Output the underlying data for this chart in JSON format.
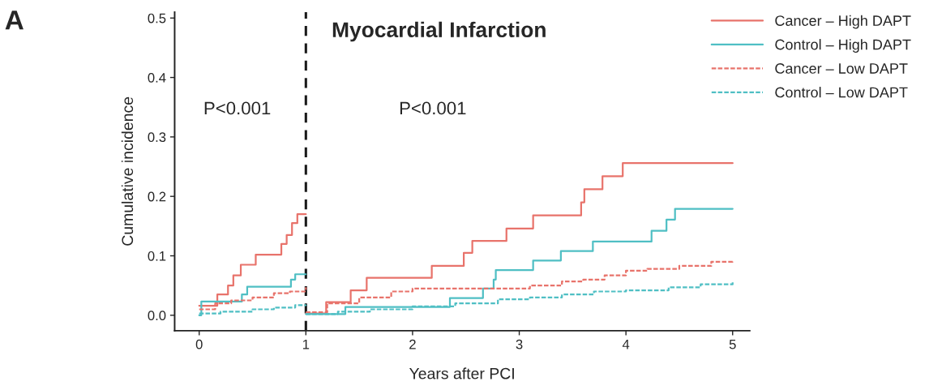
{
  "chart_data": {
    "type": "step",
    "title": "Myocardial Infarction",
    "xlabel": "Years after PCI",
    "ylabel": "Cumulative incidence",
    "annotations": [
      "A",
      "P<0.001",
      "P<0.001"
    ],
    "xlim": [
      -0.23,
      5.16
    ],
    "ylim": [
      -0.026,
      0.51
    ],
    "xticks": [
      0,
      1,
      2,
      3,
      4,
      5
    ],
    "yticks": [
      {
        "value": 0,
        "label": "0.0"
      },
      0.1,
      0.2,
      0.3,
      0.4,
      0.5
    ],
    "grid": false,
    "legend": "top right",
    "ref_lines": [
      {
        "axis": "x",
        "value": 1,
        "color": "#1a1a1a",
        "line_style": "dashed"
      }
    ],
    "series": [
      {
        "color": "#e8736b",
        "line_style": "solid",
        "x": [
          0,
          0.17,
          0.27,
          0.32,
          0.39,
          0.53,
          0.77,
          0.82,
          0.87,
          0.92,
          0.97,
          1
        ],
        "values": [
          0.016,
          0.035,
          0.05,
          0.067,
          0.085,
          0.102,
          0.12,
          0.135,
          0.155,
          0.17,
          0.17,
          0.17
        ]
      },
      {
        "name": "Cancer – High DAPT",
        "color": "#e8736b",
        "line_style": "solid",
        "x": [
          1,
          1.19,
          1.42,
          1.57,
          2.18,
          2.48,
          2.56,
          2.88,
          3.13,
          3.58,
          3.61,
          3.78,
          3.97,
          5
        ],
        "values": [
          0.003,
          0.022,
          0.042,
          0.063,
          0.083,
          0.105,
          0.125,
          0.146,
          0.168,
          0.19,
          0.212,
          0.234,
          0.256,
          0.256
        ]
      },
      {
        "color": "#4fbfc4",
        "line_style": "solid",
        "x": [
          0,
          0.02,
          0.4,
          0.45,
          0.86,
          0.9,
          1
        ],
        "values": [
          0.0,
          0.023,
          0.035,
          0.048,
          0.06,
          0.069,
          0.069
        ]
      },
      {
        "name": "Control – High DAPT",
        "color": "#4fbfc4",
        "line_style": "solid",
        "x": [
          1,
          1.37,
          2.35,
          2.66,
          2.76,
          2.78,
          3.13,
          3.39,
          3.69,
          4.24,
          4.38,
          4.46,
          5
        ],
        "values": [
          0.002,
          0.014,
          0.029,
          0.045,
          0.06,
          0.076,
          0.092,
          0.108,
          0.124,
          0.142,
          0.161,
          0.179,
          0.179
        ]
      },
      {
        "color": "#e8736b",
        "line_style": "dashed",
        "x": [
          0,
          0.15,
          0.3,
          0.5,
          0.7,
          0.85,
          1
        ],
        "values": [
          0.01,
          0.02,
          0.025,
          0.03,
          0.037,
          0.04,
          0.047
        ]
      },
      {
        "name": "Cancer – Low DAPT",
        "color": "#e8736b",
        "line_style": "dashed",
        "x": [
          1,
          1.2,
          1.5,
          1.8,
          2.0,
          3.1,
          3.4,
          3.6,
          3.8,
          4.0,
          4.2,
          4.5,
          4.8,
          5
        ],
        "values": [
          0.005,
          0.02,
          0.03,
          0.04,
          0.045,
          0.05,
          0.057,
          0.06,
          0.067,
          0.075,
          0.078,
          0.083,
          0.09,
          0.092
        ]
      },
      {
        "color": "#4fbfc4",
        "line_style": "dashed",
        "x": [
          0,
          0.2,
          0.5,
          0.7,
          0.9,
          1
        ],
        "values": [
          0.003,
          0.006,
          0.01,
          0.013,
          0.017,
          0.018
        ]
      },
      {
        "name": "Control – Low DAPT",
        "color": "#4fbfc4",
        "line_style": "dashed",
        "x": [
          1,
          1.3,
          1.6,
          2.0,
          2.4,
          2.8,
          3.1,
          3.4,
          3.7,
          4.0,
          4.4,
          4.7,
          5
        ],
        "values": [
          0.002,
          0.006,
          0.01,
          0.015,
          0.02,
          0.027,
          0.03,
          0.035,
          0.04,
          0.042,
          0.047,
          0.052,
          0.056
        ]
      }
    ]
  }
}
